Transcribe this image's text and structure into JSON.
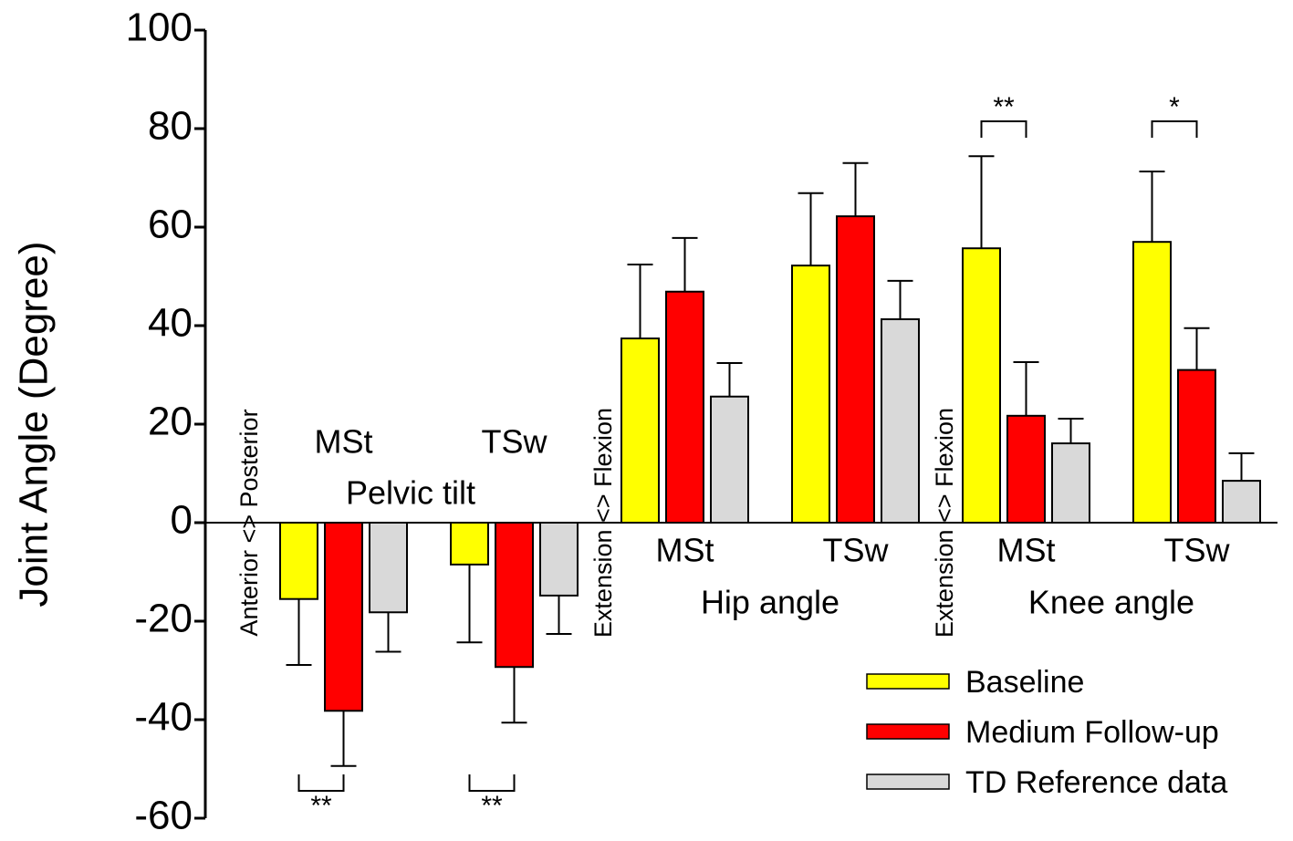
{
  "chart_data": {
    "type": "bar",
    "ylabel": "Joint Angle (Degree)",
    "ylim": [
      -60,
      100
    ],
    "yticks": [
      -60,
      -40,
      -20,
      0,
      20,
      40,
      60,
      80,
      100
    ],
    "grid": false,
    "legend_position": "lower right",
    "categories": [
      "MSt",
      "TSw",
      "MSt",
      "TSw",
      "MSt",
      "TSw"
    ],
    "sections": [
      {
        "label": "Pelvic tilt",
        "direction_label": "Anterior <> Posterior",
        "categories": [
          0,
          1
        ]
      },
      {
        "label": "Hip angle",
        "direction_label": "Extension <> Flexion",
        "categories": [
          2,
          3
        ]
      },
      {
        "label": "Knee angle",
        "direction_label": "Extension <> Flexion",
        "categories": [
          4,
          5
        ]
      }
    ],
    "series": [
      {
        "name": "Baseline",
        "color": "#ffff00",
        "values": [
          -15.5,
          -8.5,
          37.4,
          52.2,
          55.7,
          57.0
        ],
        "errors": [
          13.4,
          15.8,
          15.0,
          14.7,
          18.7,
          14.3
        ]
      },
      {
        "name": "Medium Follow-up",
        "color": "#ff0000",
        "values": [
          -38.2,
          -29.3,
          46.9,
          62.2,
          21.7,
          31.0
        ],
        "errors": [
          11.2,
          11.3,
          10.9,
          10.8,
          10.9,
          8.5
        ]
      },
      {
        "name": "TD Reference data",
        "color": "#d9d9d9",
        "values": [
          -18.2,
          -14.8,
          25.6,
          41.3,
          16.1,
          8.5
        ],
        "errors": [
          8.0,
          7.8,
          6.8,
          7.8,
          5.0,
          5.6
        ]
      }
    ],
    "significance": [
      {
        "text": "**",
        "category": 0,
        "side": "below"
      },
      {
        "text": "**",
        "category": 1,
        "side": "below"
      },
      {
        "text": "**",
        "category": 4,
        "side": "above"
      },
      {
        "text": "*",
        "category": 5,
        "side": "above"
      }
    ]
  }
}
